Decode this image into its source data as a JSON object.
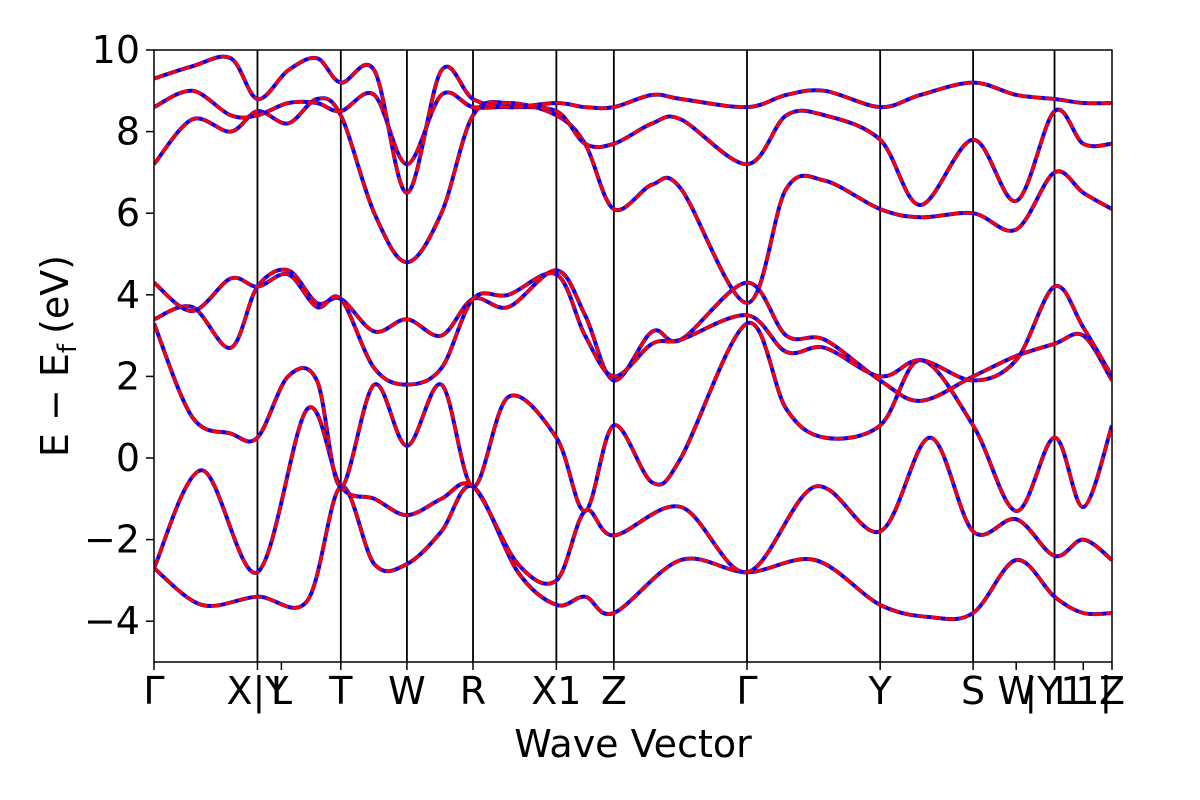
{
  "chart_data": {
    "type": "line",
    "title": "",
    "xlabel": "Wave Vector",
    "ylabel": "E − E",
    "ylabel_subscript": "f",
    "ylabel_unit": "(eV)",
    "ylim": [
      -5,
      10
    ],
    "yticks": [
      10,
      8,
      6,
      4,
      2,
      0,
      -2,
      -4
    ],
    "ytick_labels": [
      "10",
      "8",
      "6",
      "4",
      "2",
      "0",
      "−2",
      "−4"
    ],
    "xlim": [
      0,
      1
    ],
    "kpoints": [
      {
        "label": "Γ",
        "x": 0.0,
        "line": false
      },
      {
        "label": "X|Y",
        "x": 0.108,
        "line": true
      },
      {
        "label": "L",
        "x": 0.133,
        "line": false
      },
      {
        "label": "T",
        "x": 0.195,
        "line": true
      },
      {
        "label": "W",
        "x": 0.264,
        "line": true
      },
      {
        "label": "R",
        "x": 0.333,
        "line": true
      },
      {
        "label": "X1",
        "x": 0.42,
        "line": true
      },
      {
        "label": "Z",
        "x": 0.48,
        "line": true
      },
      {
        "label": "Γ",
        "x": 0.619,
        "line": true
      },
      {
        "label": "Y",
        "x": 0.758,
        "line": true
      },
      {
        "label": "S",
        "x": 0.855,
        "line": true
      },
      {
        "label": "W",
        "x": 0.9,
        "line": false
      },
      {
        "label": "|Y1",
        "x": 0.94,
        "line": true
      },
      {
        "label": "L1|",
        "x": 0.97,
        "line": false
      },
      {
        "label": "Z",
        "x": 1.0,
        "line": false
      }
    ],
    "series_colors": {
      "reference": "#0000ff",
      "overlay": "#ff0000"
    },
    "bands": [
      {
        "x": [
          0,
          0.05,
          0.108,
          0.16,
          0.195,
          0.23,
          0.264,
          0.3,
          0.333,
          0.38,
          0.42,
          0.45,
          0.48,
          0.55,
          0.619,
          0.69,
          0.758,
          0.81,
          0.855,
          0.9,
          0.94,
          0.97,
          1.0
        ],
        "y": [
          -2.7,
          -3.6,
          -3.4,
          -3.5,
          -0.7,
          -2.6,
          -2.6,
          -1.8,
          -0.7,
          -2.8,
          -3.6,
          -3.4,
          -3.8,
          -2.5,
          -2.8,
          -2.5,
          -3.6,
          -3.9,
          -3.8,
          -2.5,
          -3.4,
          -3.8,
          -3.8
        ]
      },
      {
        "x": [
          0,
          0.05,
          0.108,
          0.16,
          0.195,
          0.23,
          0.264,
          0.3,
          0.333,
          0.38,
          0.42,
          0.45,
          0.48,
          0.55,
          0.619,
          0.69,
          0.758,
          0.81,
          0.855,
          0.9,
          0.94,
          0.97,
          1.0
        ],
        "y": [
          -2.7,
          -0.3,
          -2.8,
          1.2,
          -0.7,
          -1.0,
          -1.4,
          -1.0,
          -0.7,
          -2.6,
          -3.0,
          -1.3,
          -1.9,
          -1.2,
          -2.8,
          -0.7,
          -1.8,
          0.5,
          -1.8,
          -1.5,
          -2.4,
          -2.0,
          -2.5
        ]
      },
      {
        "x": [
          0,
          0.04,
          0.08,
          0.108,
          0.14,
          0.17,
          0.195,
          0.23,
          0.264,
          0.3,
          0.333,
          0.37,
          0.42,
          0.45,
          0.48,
          0.52,
          0.55,
          0.619,
          0.66,
          0.7,
          0.758,
          0.8,
          0.855,
          0.9,
          0.94,
          0.97,
          1.0
        ],
        "y": [
          3.3,
          1.0,
          0.6,
          0.5,
          2.0,
          1.9,
          -0.7,
          1.8,
          0.3,
          1.8,
          -0.7,
          1.5,
          0.5,
          -1.3,
          0.8,
          -0.6,
          0.0,
          3.3,
          1.2,
          0.5,
          0.8,
          2.4,
          0.8,
          -1.3,
          0.5,
          -1.2,
          0.8
        ]
      },
      {
        "x": [
          0,
          0.04,
          0.08,
          0.108,
          0.14,
          0.17,
          0.195,
          0.23,
          0.264,
          0.3,
          0.333,
          0.37,
          0.42,
          0.45,
          0.48,
          0.52,
          0.55,
          0.619,
          0.66,
          0.7,
          0.758,
          0.8,
          0.855,
          0.9,
          0.94,
          0.97,
          1.0
        ],
        "y": [
          3.4,
          3.7,
          2.7,
          4.2,
          4.6,
          3.8,
          3.9,
          3.1,
          3.4,
          3.0,
          3.9,
          3.7,
          4.6,
          3.5,
          1.9,
          3.1,
          2.9,
          4.3,
          3.0,
          2.9,
          1.9,
          1.4,
          2.0,
          2.5,
          2.8,
          3.0,
          1.9
        ]
      },
      {
        "x": [
          0,
          0.04,
          0.08,
          0.108,
          0.14,
          0.17,
          0.195,
          0.23,
          0.264,
          0.3,
          0.333,
          0.37,
          0.42,
          0.45,
          0.48,
          0.52,
          0.55,
          0.619,
          0.66,
          0.7,
          0.758,
          0.8,
          0.855,
          0.9,
          0.94,
          0.97,
          1.0
        ],
        "y": [
          4.3,
          3.6,
          4.4,
          4.2,
          4.5,
          3.7,
          3.9,
          2.2,
          1.8,
          2.2,
          3.9,
          4.0,
          4.5,
          3.0,
          2.0,
          2.8,
          2.9,
          3.5,
          2.6,
          2.7,
          2.0,
          2.4,
          1.9,
          2.4,
          4.2,
          3.2,
          2.0
        ]
      },
      {
        "x": [
          0,
          0.04,
          0.08,
          0.108,
          0.14,
          0.17,
          0.195,
          0.23,
          0.264,
          0.3,
          0.333,
          0.37,
          0.42,
          0.45,
          0.48,
          0.52,
          0.55,
          0.619,
          0.66,
          0.7,
          0.758,
          0.8,
          0.855,
          0.9,
          0.94,
          0.97,
          1.0
        ],
        "y": [
          7.2,
          8.3,
          8.0,
          8.5,
          8.2,
          8.8,
          8.4,
          6.0,
          4.8,
          6.0,
          8.4,
          8.7,
          8.4,
          7.7,
          6.1,
          6.7,
          6.6,
          3.8,
          6.6,
          6.8,
          6.1,
          5.9,
          6.0,
          5.6,
          7.0,
          6.5,
          6.1
        ]
      },
      {
        "x": [
          0,
          0.04,
          0.08,
          0.108,
          0.14,
          0.17,
          0.195,
          0.23,
          0.264,
          0.3,
          0.333,
          0.37,
          0.42,
          0.45,
          0.48,
          0.52,
          0.55,
          0.619,
          0.66,
          0.7,
          0.758,
          0.8,
          0.855,
          0.9,
          0.94,
          0.97,
          1.0
        ],
        "y": [
          8.6,
          9.0,
          8.4,
          8.4,
          8.7,
          8.7,
          8.5,
          8.9,
          7.2,
          8.9,
          8.6,
          8.6,
          8.5,
          7.7,
          7.7,
          8.2,
          8.3,
          7.2,
          8.4,
          8.4,
          7.8,
          6.2,
          7.8,
          6.3,
          8.5,
          7.7,
          7.7
        ]
      },
      {
        "x": [
          0,
          0.04,
          0.08,
          0.108,
          0.14,
          0.17,
          0.195,
          0.23,
          0.264,
          0.3,
          0.333,
          0.37,
          0.42,
          0.45,
          0.48,
          0.52,
          0.55,
          0.619,
          0.66,
          0.7,
          0.758,
          0.8,
          0.855,
          0.9,
          0.94,
          0.97,
          1.0
        ],
        "y": [
          9.3,
          9.6,
          9.8,
          8.8,
          9.5,
          9.8,
          9.2,
          9.5,
          6.5,
          9.5,
          8.8,
          8.6,
          8.7,
          8.6,
          8.6,
          8.9,
          8.8,
          8.6,
          8.9,
          9.0,
          8.6,
          8.9,
          9.2,
          8.9,
          8.8,
          8.7,
          8.7
        ]
      }
    ]
  }
}
